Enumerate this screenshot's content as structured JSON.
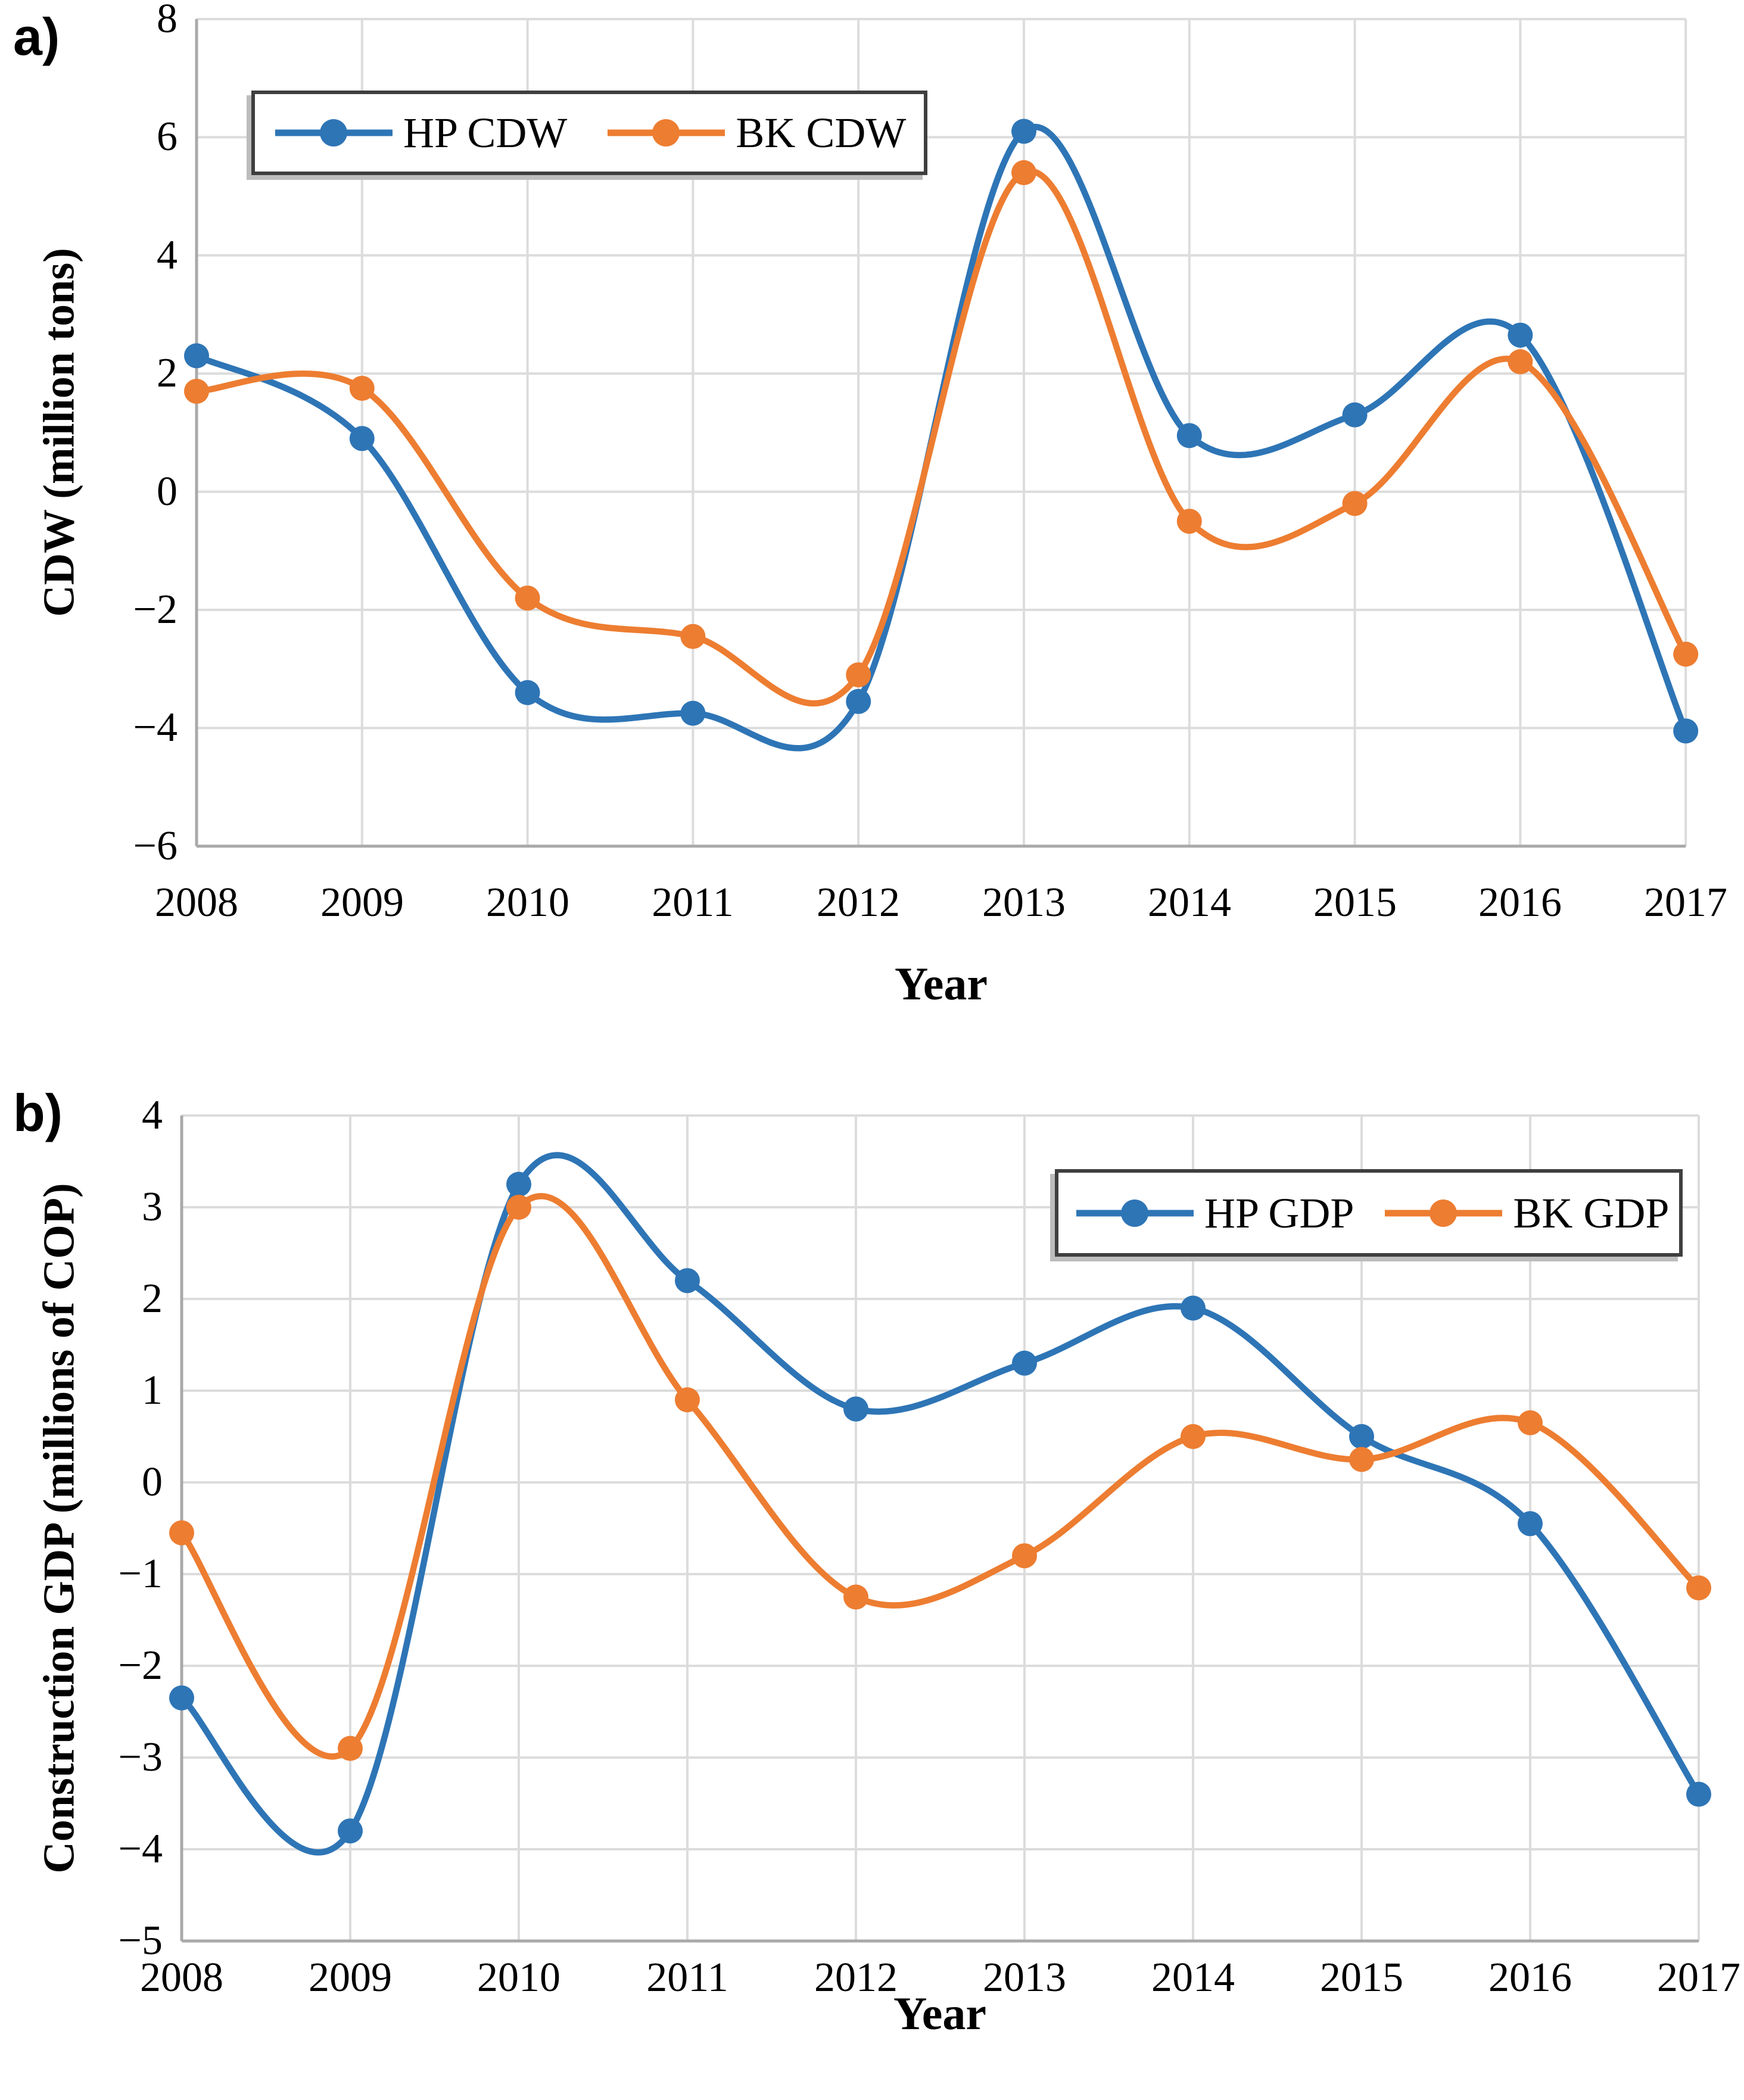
{
  "colors": {
    "hp_blue": "#2E75B6",
    "bk_orange": "#ED7D31",
    "gridline": "#DCDCDC",
    "axis_line": "#A9A9A9",
    "text": "#000000",
    "legend_border": "#3F3F3F",
    "legend_shadow": "#BDBDBD"
  },
  "chart_data": [
    {
      "type": "line",
      "panel_label": "a)",
      "xlabel": "Year",
      "ylabel": "CDW (million tons)",
      "x": [
        2008,
        2009,
        2010,
        2011,
        2012,
        2013,
        2014,
        2015,
        2016,
        2017
      ],
      "ylim": [
        -6,
        8
      ],
      "yticks": [
        8,
        6,
        4,
        2,
        0,
        -2,
        -4,
        -6
      ],
      "ytick_labels": [
        "8",
        "6",
        "4",
        "2",
        "0",
        "−2",
        "−4",
        "−6"
      ],
      "grid": true,
      "smooth_lines": true,
      "legend_position": "inside-top-left",
      "series": [
        {
          "name": "HP CDW",
          "color": "#2E75B6",
          "values": [
            2.3,
            0.9,
            -3.4,
            -3.75,
            -3.55,
            6.1,
            0.95,
            1.3,
            2.65,
            -4.05
          ]
        },
        {
          "name": "BK CDW",
          "color": "#ED7D31",
          "values": [
            1.7,
            1.75,
            -1.8,
            -2.45,
            -3.1,
            5.4,
            -0.5,
            -0.2,
            2.2,
            -2.75
          ]
        }
      ]
    },
    {
      "type": "line",
      "panel_label": "b)",
      "xlabel": "Year",
      "ylabel": "Construction GDP (millions of COP)",
      "x": [
        2008,
        2009,
        2010,
        2011,
        2012,
        2013,
        2014,
        2015,
        2016,
        2017
      ],
      "ylim": [
        -5,
        4
      ],
      "yticks": [
        4,
        3,
        2,
        1,
        0,
        -1,
        -2,
        -3,
        -4,
        -5
      ],
      "ytick_labels": [
        "4",
        "3",
        "2",
        "1",
        "0",
        "−1",
        "−2",
        "−3",
        "−4",
        "−5"
      ],
      "grid": true,
      "smooth_lines": true,
      "legend_position": "inside-top-right",
      "series": [
        {
          "name": "HP GDP",
          "color": "#2E75B6",
          "values": [
            -2.35,
            -3.8,
            3.25,
            2.2,
            0.8,
            1.3,
            1.9,
            0.5,
            -0.45,
            -3.4
          ]
        },
        {
          "name": "BK GDP",
          "color": "#ED7D31",
          "values": [
            -0.55,
            -2.9,
            3.0,
            0.9,
            -1.25,
            -0.8,
            0.5,
            0.25,
            0.65,
            -1.15
          ]
        }
      ]
    }
  ]
}
